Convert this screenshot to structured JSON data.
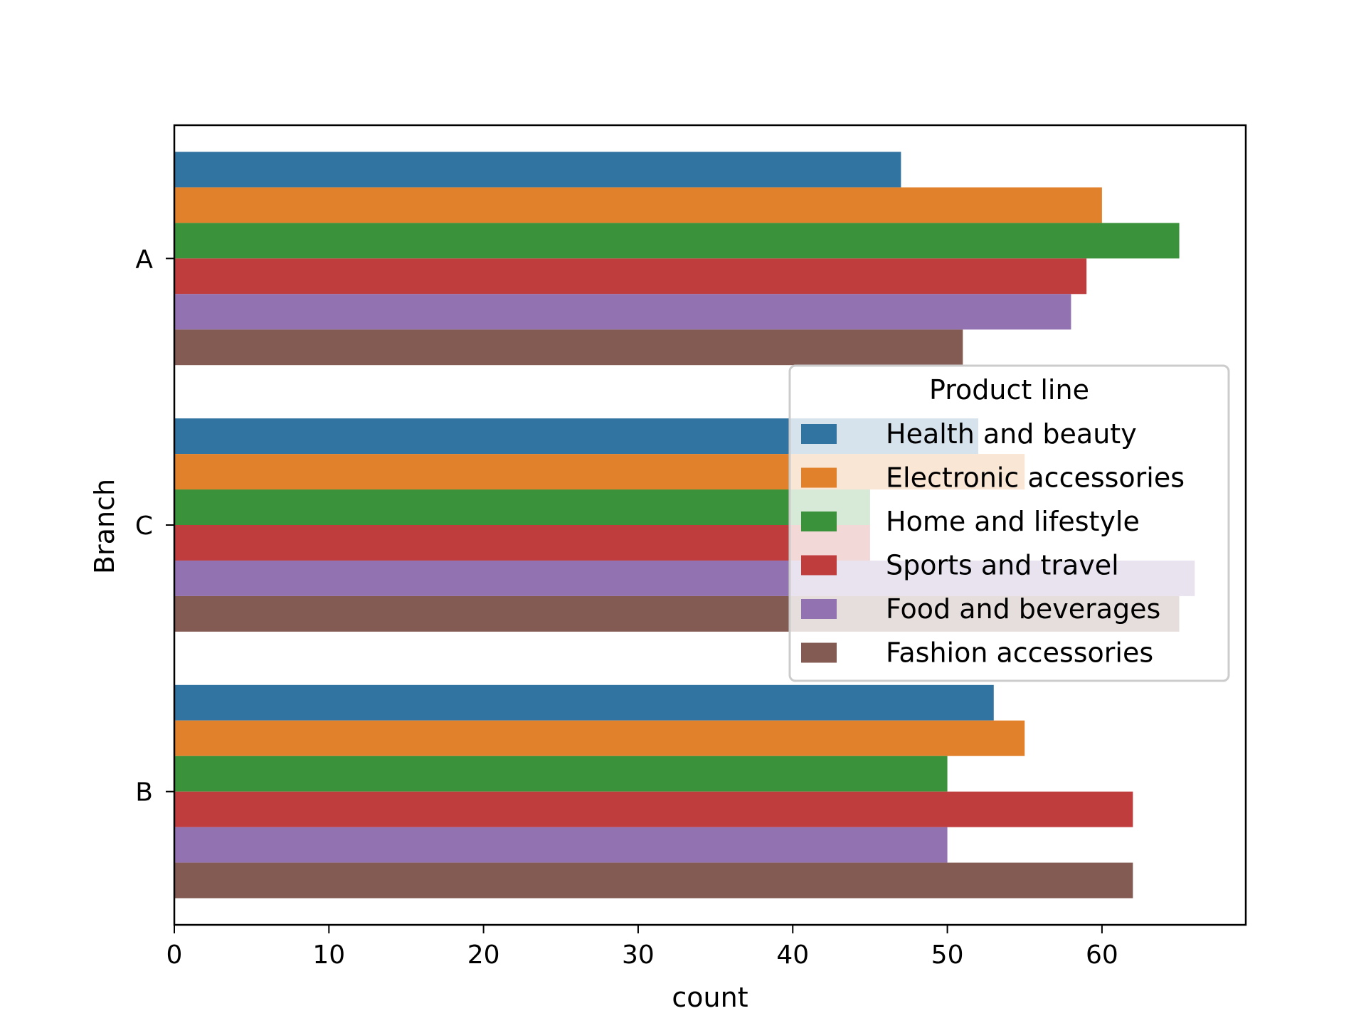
{
  "chart_data": {
    "type": "bar",
    "orientation": "horizontal",
    "title": "",
    "xlabel": "count",
    "ylabel": "Branch",
    "categories": [
      "A",
      "C",
      "B"
    ],
    "xlim": [
      0,
      69.3
    ],
    "xticks": [
      0,
      10,
      20,
      30,
      40,
      50,
      60
    ],
    "grid": false,
    "legend": {
      "title": "Product line",
      "placement": "center-right"
    },
    "series": [
      {
        "name": "Health and beauty",
        "color": "#3274a1",
        "values": [
          47,
          52,
          53
        ]
      },
      {
        "name": "Electronic accessories",
        "color": "#e1812c",
        "values": [
          60,
          55,
          55
        ]
      },
      {
        "name": "Home and lifestyle",
        "color": "#3a923a",
        "values": [
          65,
          45,
          50
        ]
      },
      {
        "name": "Sports and travel",
        "color": "#c03d3e",
        "values": [
          59,
          45,
          62
        ]
      },
      {
        "name": "Food and beverages",
        "color": "#9372b2",
        "values": [
          58,
          66,
          50
        ]
      },
      {
        "name": "Fashion accessories",
        "color": "#845b53",
        "values": [
          51,
          65,
          62
        ]
      }
    ]
  }
}
